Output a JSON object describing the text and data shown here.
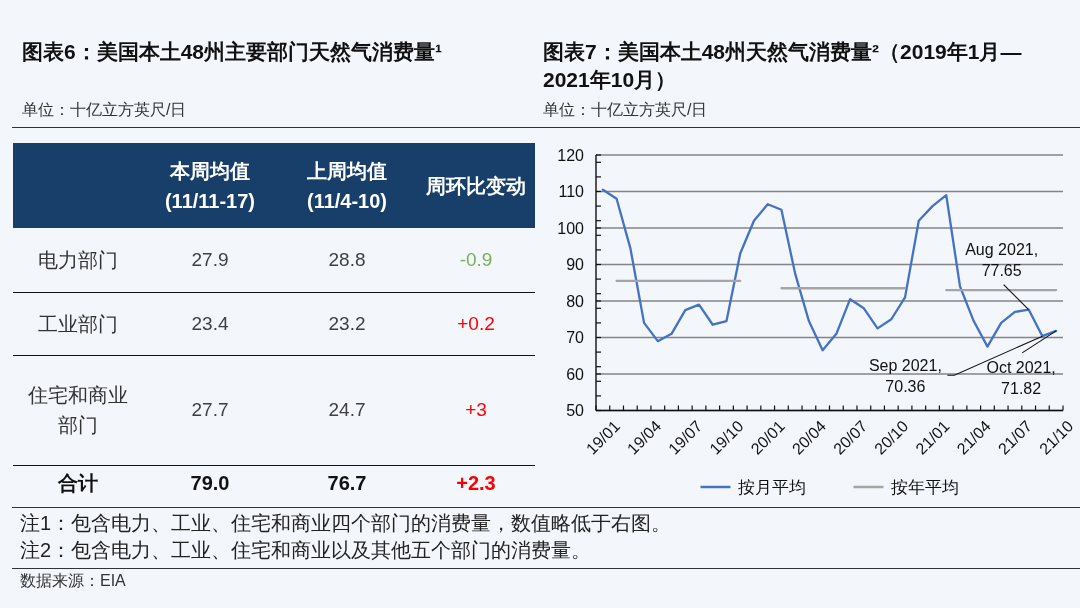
{
  "chart_data": [
    {
      "type": "other",
      "title": "图表6：美国本土48州主要部门天然气消费量¹",
      "subtitle": "单位：十亿立方英尺/日",
      "categories": [
        "本周均值 (11/11-17)",
        "上周均值 (11/4-10)",
        "周环比变动"
      ],
      "y_categories": [
        "电力部门",
        "工业部门",
        "住宅和商业部门",
        "合计"
      ],
      "cell_labels": [
        [
          "27.9",
          "28.8",
          "-0.9"
        ],
        [
          "23.4",
          "23.2",
          "+0.2"
        ],
        [
          "27.7",
          "24.7",
          "+3"
        ],
        [
          "79.0",
          "76.7",
          "+2.3"
        ]
      ],
      "annotations": [
        "注1：包含电力、工业、住宅和商业四个部门的消费量，数值略低于右图。",
        "注2：包含电力、工业、住宅和商业以及其他五个部门的消费量。",
        "数据来源：EIA"
      ]
    },
    {
      "type": "line",
      "title": "图表7：美国本土48州天然气消费量²（2019年1月—2021年10月）",
      "subtitle": "单位：十亿立方英尺/日",
      "categories": [
        "19/01",
        null,
        null,
        "19/04",
        null,
        null,
        "19/07",
        null,
        null,
        "19/10",
        null,
        null,
        "20/01",
        null,
        null,
        "20/04",
        null,
        null,
        "20/07",
        null,
        null,
        "20/10",
        null,
        null,
        "21/01",
        null,
        null,
        "21/04",
        null,
        null,
        "21/07",
        null,
        null,
        "21/10"
      ],
      "series": [
        {
          "name": "按月平均",
          "color": "#4472c4",
          "values": [
            110.5,
            108,
            94.5,
            74,
            69,
            71,
            77.5,
            79,
            73.5,
            74.5,
            93,
            102,
            106.5,
            105,
            87.5,
            74.5,
            66.5,
            71,
            80.5,
            78,
            72.5,
            75,
            81,
            102,
            106,
            109,
            84,
            74.5,
            67.5,
            74,
            77,
            77.65,
            70.36,
            71.82
          ],
          "value_labels": [
            null,
            null,
            null,
            null,
            null,
            null,
            null,
            null,
            null,
            null,
            null,
            null,
            null,
            null,
            null,
            null,
            null,
            null,
            null,
            null,
            null,
            null,
            null,
            null,
            null,
            null,
            null,
            null,
            null,
            null,
            null,
            "Aug 2021, 77.65",
            "Sep 2021, 70.36",
            "Oct 2021, 71.82"
          ]
        },
        {
          "name": "按年平均",
          "color": "#a5a5a5",
          "values": [
            null,
            85.5,
            85.5,
            85.5,
            85.5,
            85.5,
            85.5,
            85.5,
            85.5,
            85.5,
            85.5,
            null,
            null,
            83.5,
            83.5,
            83.5,
            83.5,
            83.5,
            83.5,
            83.5,
            83.5,
            83.5,
            83.5,
            null,
            null,
            83,
            83,
            83,
            83,
            83,
            83,
            83,
            83,
            83
          ]
        }
      ],
      "ylim": [
        50,
        120
      ],
      "yticks": [
        50,
        {
          "value": 54,
          "label": null
        },
        {
          "value": 58,
          "label": null
        },
        60,
        {
          "value": 62,
          "label": null
        },
        {
          "value": 66,
          "label": null
        },
        70,
        {
          "value": 74,
          "label": null
        },
        {
          "value": 78,
          "label": null
        },
        80,
        {
          "value": 82,
          "label": null
        },
        {
          "value": 86,
          "label": null
        },
        90,
        {
          "value": 94,
          "label": null
        },
        {
          "value": 98,
          "label": null
        },
        100,
        {
          "value": 102,
          "label": null
        },
        {
          "value": 106,
          "label": null
        },
        110,
        {
          "value": 114,
          "label": null
        },
        {
          "value": 118,
          "label": null
        },
        120
      ],
      "grid": "y",
      "legend": "bottom"
    }
  ]
}
